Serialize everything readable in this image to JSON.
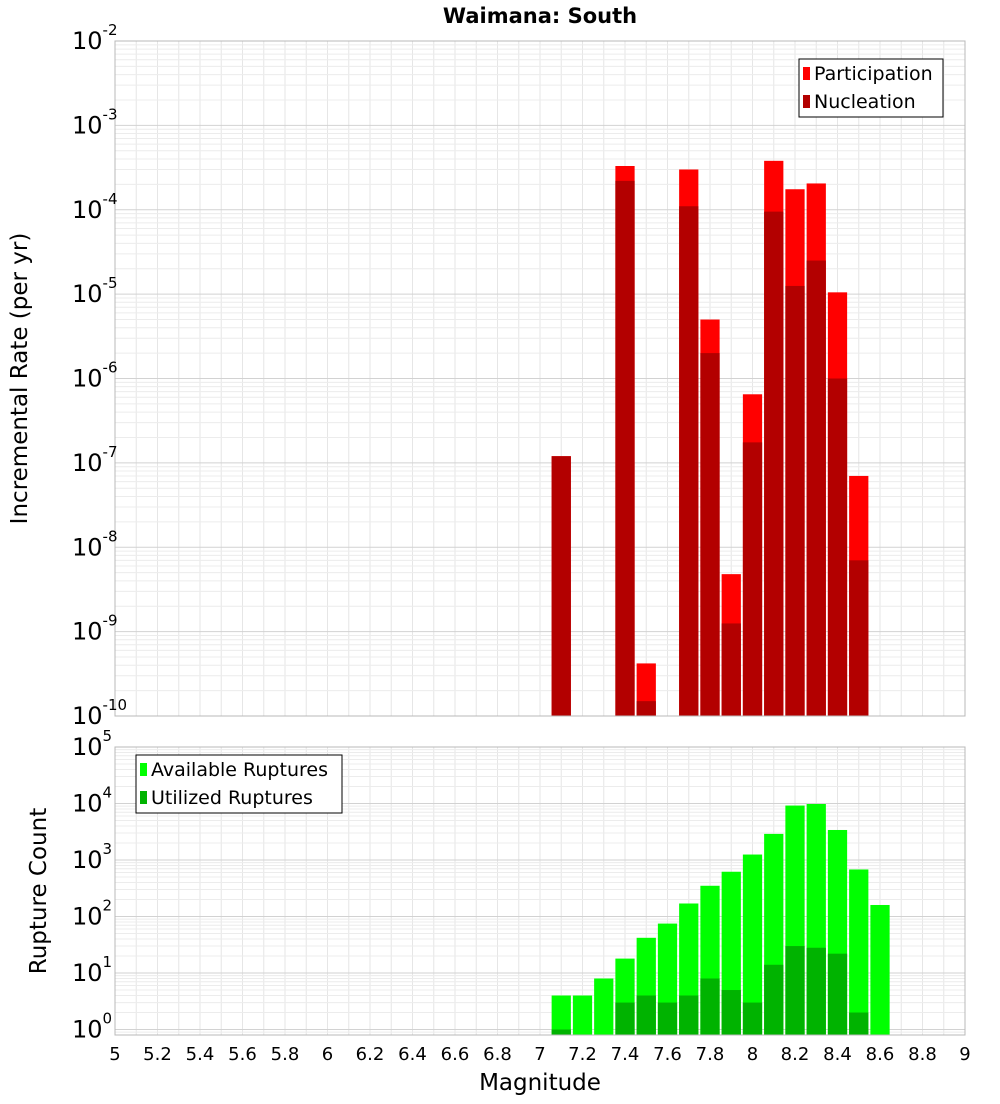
{
  "chart_data": [
    {
      "type": "bar",
      "name": "rate-panel",
      "title": "Waimana: South",
      "ylabel": "Incremental Rate (per yr)",
      "yscale": "log",
      "ylim": [
        1e-10,
        0.01
      ],
      "xlim": [
        5,
        9
      ],
      "ytick_base": "10",
      "ytick_exponents": [
        "-10",
        "-9",
        "-8",
        "-7",
        "-6",
        "-5",
        "-4",
        "-3",
        "-2"
      ],
      "legend_position": "top-right",
      "grid": true,
      "bar_width": 0.1,
      "x": [
        7.1,
        7.2,
        7.3,
        7.4,
        7.5,
        7.6,
        7.7,
        7.8,
        7.9,
        8.0,
        8.1,
        8.2,
        8.3,
        8.4,
        8.5,
        8.6
      ],
      "series": [
        {
          "name": "Participation",
          "color": "#ff0000",
          "values": [
            1.2e-07,
            null,
            null,
            0.00033,
            4.2e-10,
            null,
            0.0003,
            5e-06,
            4.8e-09,
            6.5e-07,
            0.00038,
            0.000175,
            0.000205,
            1.05e-05,
            7e-08,
            null
          ]
        },
        {
          "name": "Nucleation",
          "color": "#b30000",
          "values": [
            1.2e-07,
            null,
            null,
            0.00022,
            1.5e-10,
            null,
            0.00011,
            2e-06,
            1.25e-09,
            1.75e-07,
            9.5e-05,
            1.25e-05,
            2.5e-05,
            1e-06,
            7e-09,
            null
          ]
        }
      ]
    },
    {
      "type": "bar",
      "name": "count-panel",
      "title": "",
      "xlabel": "Magnitude",
      "ylabel": "Rupture Count",
      "yscale": "log",
      "ylim": [
        0.8,
        100000.0
      ],
      "xlim": [
        5,
        9
      ],
      "ytick_base": "10",
      "ytick_exponents": [
        "0",
        "1",
        "2",
        "3",
        "4",
        "5"
      ],
      "x_ticks": [
        "5",
        "5.2",
        "5.4",
        "5.6",
        "5.8",
        "6",
        "6.2",
        "6.4",
        "6.6",
        "6.8",
        "7",
        "7.2",
        "7.4",
        "7.6",
        "7.8",
        "8",
        "8.2",
        "8.4",
        "8.6",
        "8.8",
        "9"
      ],
      "legend_position": "top-left",
      "grid": true,
      "bar_width": 0.1,
      "x": [
        7.1,
        7.2,
        7.3,
        7.4,
        7.5,
        7.6,
        7.7,
        7.8,
        7.9,
        8.0,
        8.1,
        8.2,
        8.3,
        8.4,
        8.5,
        8.6
      ],
      "series": [
        {
          "name": "Available Ruptures",
          "color": "#00ff00",
          "values": [
            4,
            4,
            8,
            18,
            42,
            75,
            170,
            350,
            620,
            1250,
            2900,
            9200,
            9800,
            3400,
            680,
            160
          ]
        },
        {
          "name": "Utilized Ruptures",
          "color": "#00b300",
          "values": [
            1,
            null,
            null,
            3,
            4,
            3,
            4,
            8,
            5,
            3,
            14,
            30,
            28,
            22,
            2,
            null
          ]
        }
      ]
    }
  ]
}
